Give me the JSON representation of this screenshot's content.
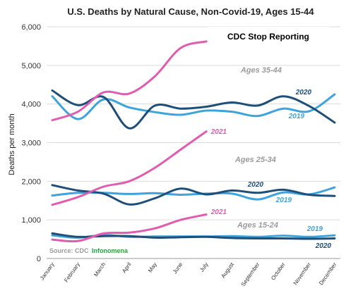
{
  "chart_data": {
    "type": "line",
    "title": "U.S. Deaths by Natural Cause, Non-Covid-19, Ages 15-44",
    "ylabel": "Deaths per month",
    "ylim": [
      0,
      6000
    ],
    "yticks": [
      0,
      1000,
      2000,
      3000,
      4000,
      5000,
      6000
    ],
    "ytick_labels": [
      "0",
      "1,000",
      "2,000",
      "3,000",
      "4,000",
      "5,000",
      "6,000"
    ],
    "categories": [
      "January",
      "February",
      "March",
      "April",
      "May",
      "June",
      "July",
      "August",
      "September",
      "October",
      "November",
      "December"
    ],
    "grid": true,
    "colors": {
      "y2021": "#e05cb0",
      "y2020": "#1f4e79",
      "y2019": "#3fa3db",
      "group": "#9b9b9b",
      "infonomena": "#2e9e3e"
    },
    "groups": [
      {
        "label": "Ages 35-44",
        "series": [
          {
            "name": "2021",
            "color": "#e05cb0",
            "values": [
              3580,
              3800,
              4300,
              4270,
              4720,
              5450,
              5620
            ]
          },
          {
            "name": "2020",
            "color": "#1f4e79",
            "values": [
              4350,
              3970,
              4180,
              3370,
              3960,
              3880,
              3930,
              4040,
              3960,
              4200,
              3950,
              3520
            ]
          },
          {
            "name": "2019",
            "color": "#3fa3db",
            "values": [
              4200,
              3610,
              4120,
              3910,
              3790,
              3720,
              3830,
              3800,
              3690,
              3880,
              3810,
              4250
            ]
          }
        ]
      },
      {
        "label": "Ages 25-34",
        "series": [
          {
            "name": "2021",
            "color": "#e05cb0",
            "values": [
              1390,
              1590,
              1860,
              2000,
              2350,
              2820,
              3290
            ]
          },
          {
            "name": "2020",
            "color": "#1f4e79",
            "values": [
              1900,
              1760,
              1680,
              1400,
              1560,
              1810,
              1660,
              1760,
              1700,
              1780,
              1650,
              1620
            ]
          },
          {
            "name": "2019",
            "color": "#3fa3db",
            "values": [
              1630,
              1700,
              1700,
              1670,
              1690,
              1650,
              1680,
              1680,
              1530,
              1710,
              1660,
              1840
            ]
          }
        ]
      },
      {
        "label": "Ages 15-24",
        "series": [
          {
            "name": "2021",
            "color": "#e05cb0",
            "values": [
              490,
              450,
              650,
              670,
              780,
              1000,
              1140
            ]
          },
          {
            "name": "2020",
            "color": "#1f4e79",
            "values": [
              650,
              560,
              580,
              580,
              540,
              550,
              560,
              530,
              520,
              520,
              510,
              520
            ]
          },
          {
            "name": "2019",
            "color": "#3fa3db",
            "values": [
              600,
              540,
              610,
              560,
              570,
              570,
              570,
              580,
              560,
              590,
              560,
              600
            ]
          }
        ]
      }
    ],
    "annotations": {
      "note": "CDC Stop Reporting",
      "source": "Source: CDC",
      "brand": "Infonomena"
    }
  }
}
